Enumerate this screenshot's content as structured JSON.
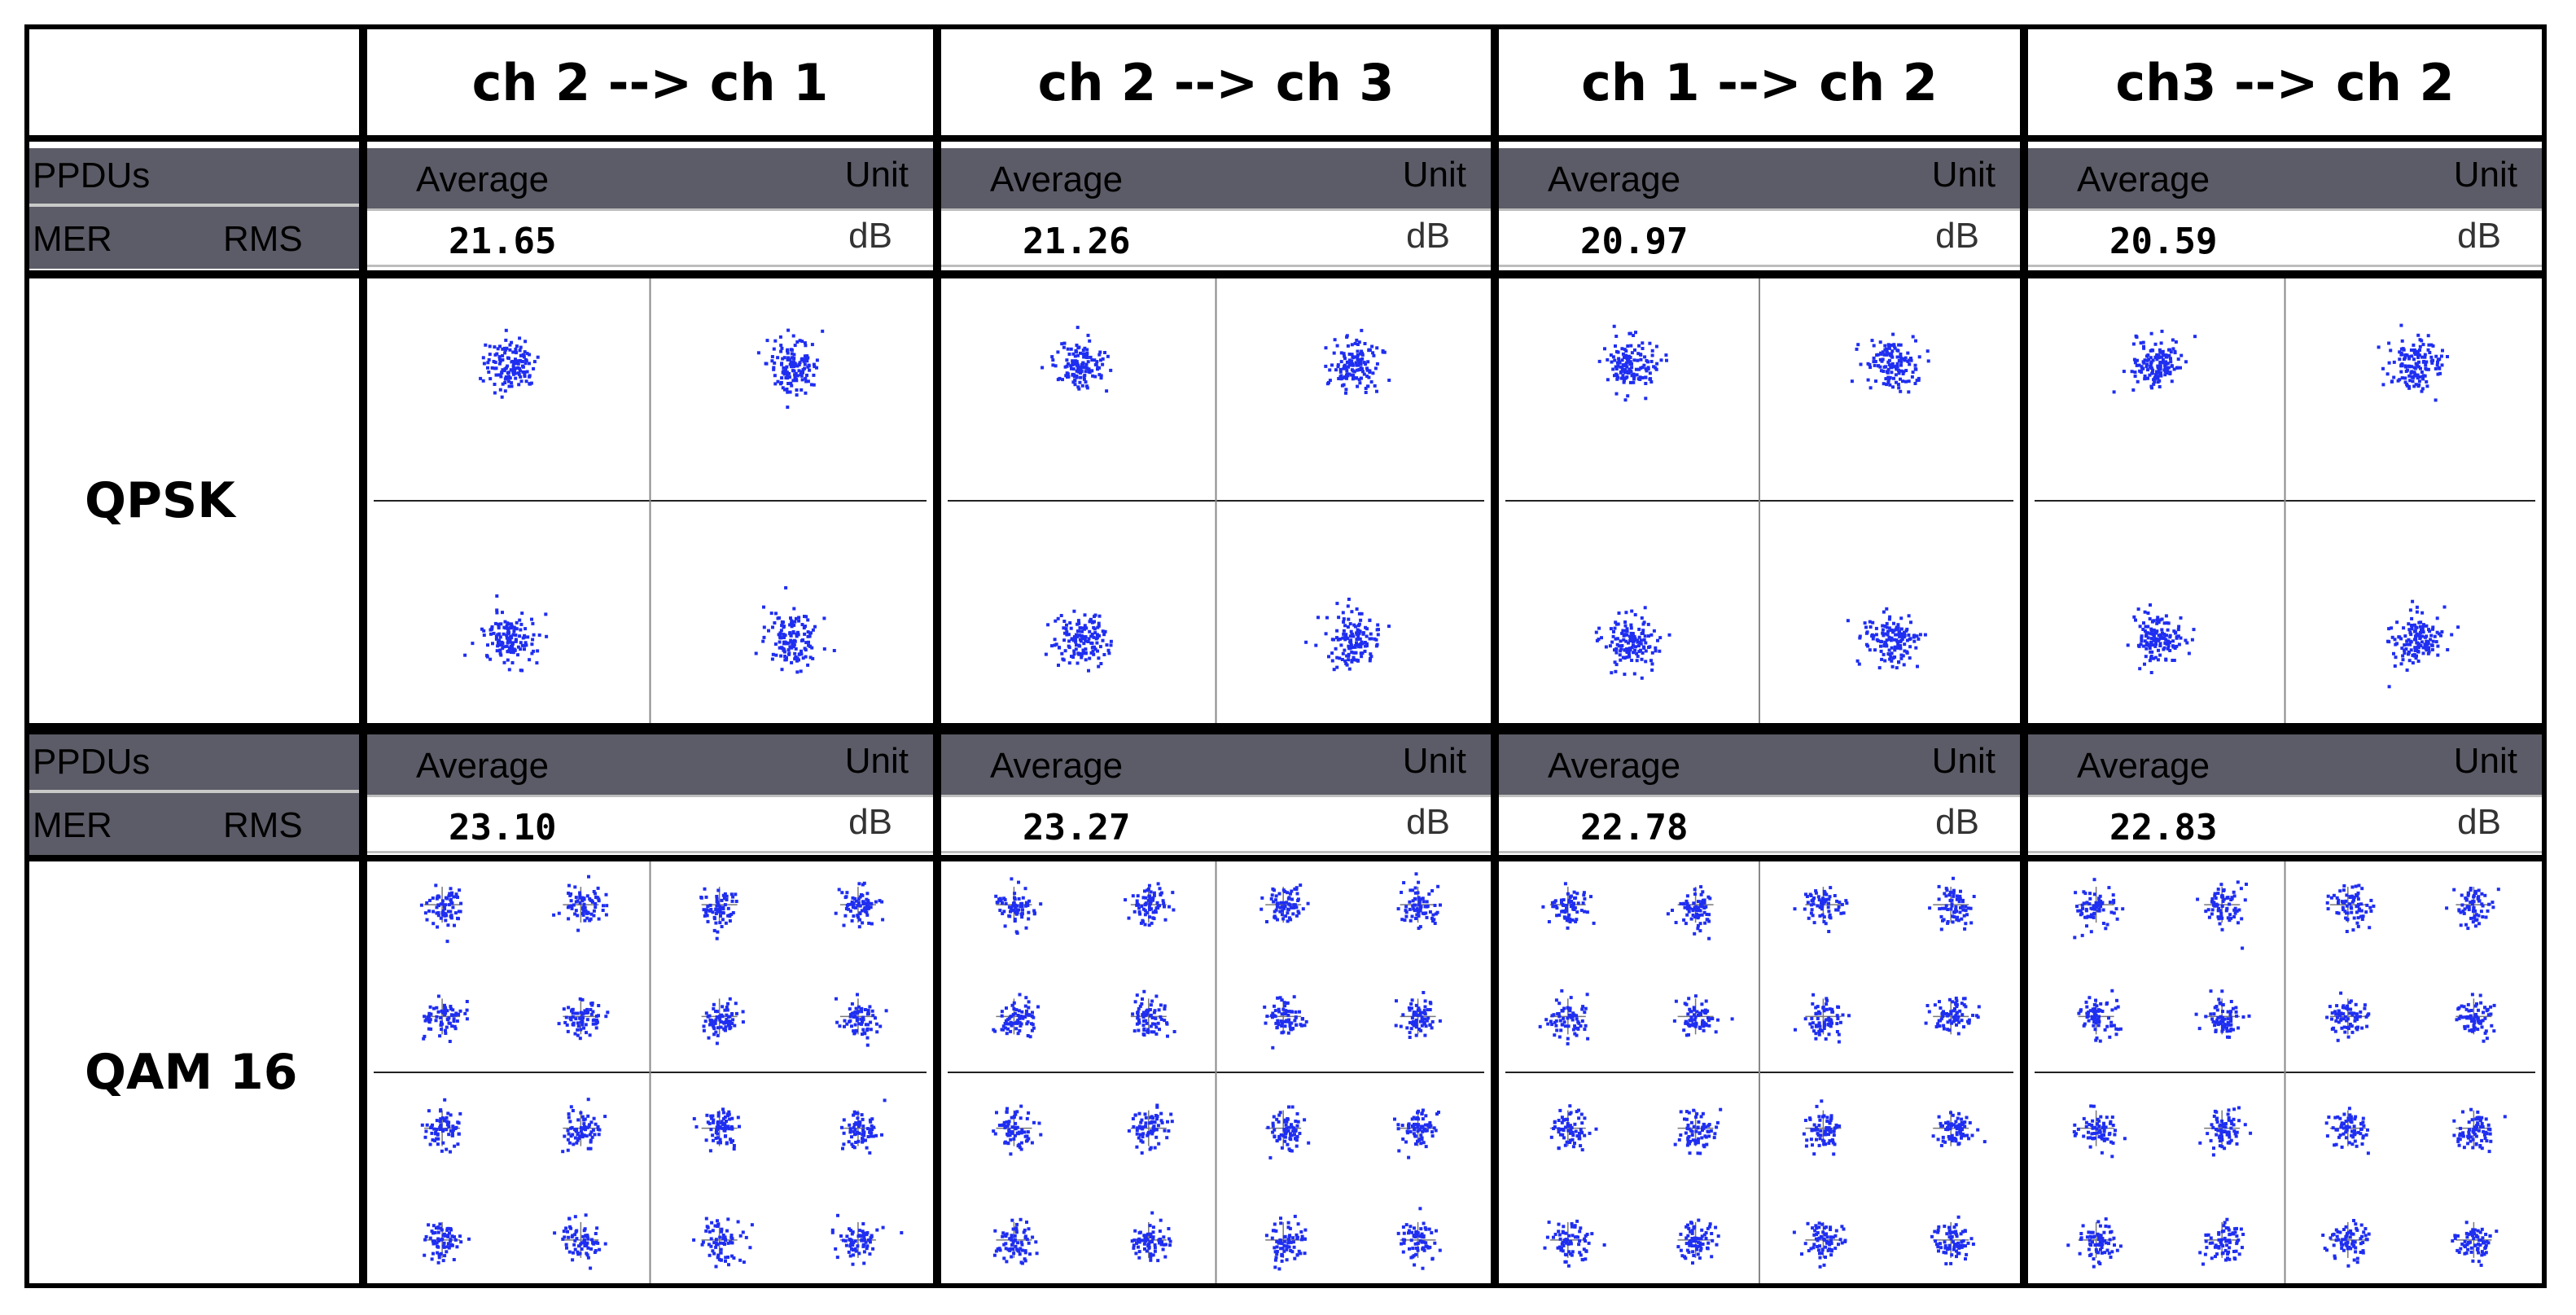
{
  "channels": [
    "ch 2 --> ch 1",
    "ch 2 --> ch 3",
    "ch 1 --> ch 2",
    "ch3 --> ch 2"
  ],
  "meter_labels": {
    "row1": "PPDUs",
    "row2_left": "MER",
    "row2_right": "RMS"
  },
  "meter_headers": {
    "average": "Average",
    "unit": "Unit"
  },
  "unit_value": "dB",
  "sections": [
    {
      "label": "QPSK",
      "mer_values": [
        "21.65",
        "21.26",
        "20.97",
        "20.59"
      ],
      "constellation_points": 4
    },
    {
      "label": "QAM 16",
      "mer_values": [
        "23.10",
        "23.27",
        "22.78",
        "22.83"
      ],
      "constellation_points": 16
    }
  ],
  "colors": {
    "header_bar": "#5c5c68",
    "symbols": "#1f2ef0",
    "axes": "#000000",
    "grid_border": "#000000"
  }
}
